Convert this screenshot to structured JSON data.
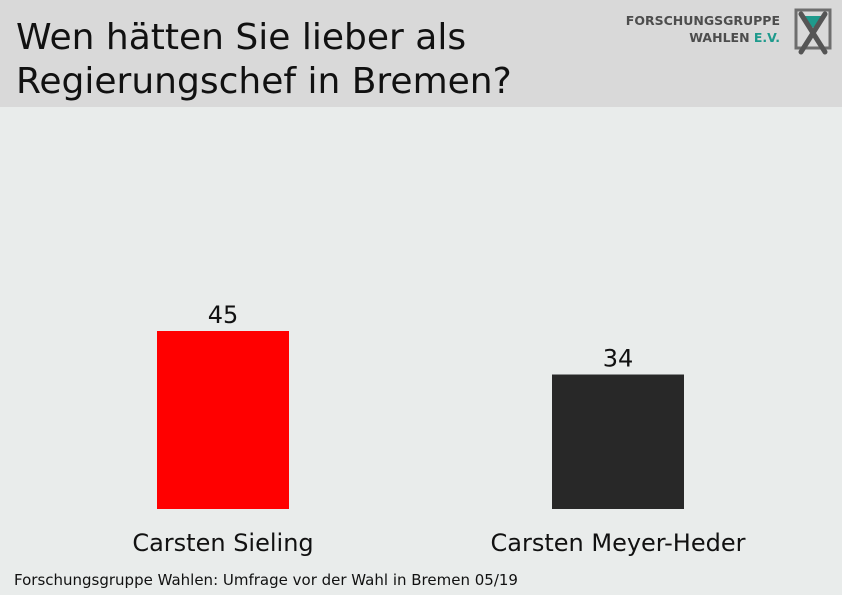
{
  "header": {
    "title_line1": "Wen hätten Sie lieber als",
    "title_line2": "Regierungschef in Bremen?",
    "logo_line1": "FORSCHUNGSGRUPPE",
    "logo_line2_main": "WAHLEN",
    "logo_line2_suffix": "E.V."
  },
  "chart_data": {
    "type": "bar",
    "categories": [
      "Carsten Sieling",
      "Carsten Meyer-Heder"
    ],
    "values": [
      45,
      34
    ],
    "colors": [
      "#ff0000",
      "#282828"
    ],
    "ylim": [
      0,
      50
    ],
    "grid": false
  },
  "footer": {
    "source": "Forschungsgruppe Wahlen: Umfrage vor der Wahl in Bremen 05/19"
  },
  "colors": {
    "background": "#e9eceb",
    "header_background": "#d9d9d9",
    "logo_accent": "#1e9a8c"
  }
}
